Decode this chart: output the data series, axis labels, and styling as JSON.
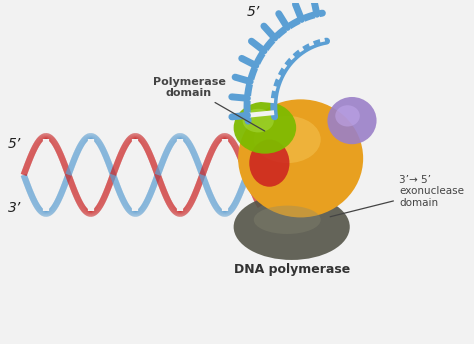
{
  "bg_color": "#f2f2f2",
  "label_polymerase_domain": "Polymerase\ndomain",
  "label_exonuclease": "3’→ 5’\nexonuclease\ndomain",
  "label_dna_polymerase": "DNA polymerase",
  "label_5prime_top": "5’",
  "label_5prime_left": "5’",
  "label_3prime_left": "3’",
  "dna_red_color": "#cc2020",
  "dna_blue_color": "#5b9fd4",
  "protein_orange_color": "#e8a020",
  "protein_green_color": "#7fba00",
  "protein_purple_color": "#9b80c8",
  "protein_dark_color": "#6b6b5a",
  "rung_color": "#f2f2f2",
  "annotation_color": "#444444",
  "font_size_labels": 9,
  "font_size_annotations": 7.5
}
